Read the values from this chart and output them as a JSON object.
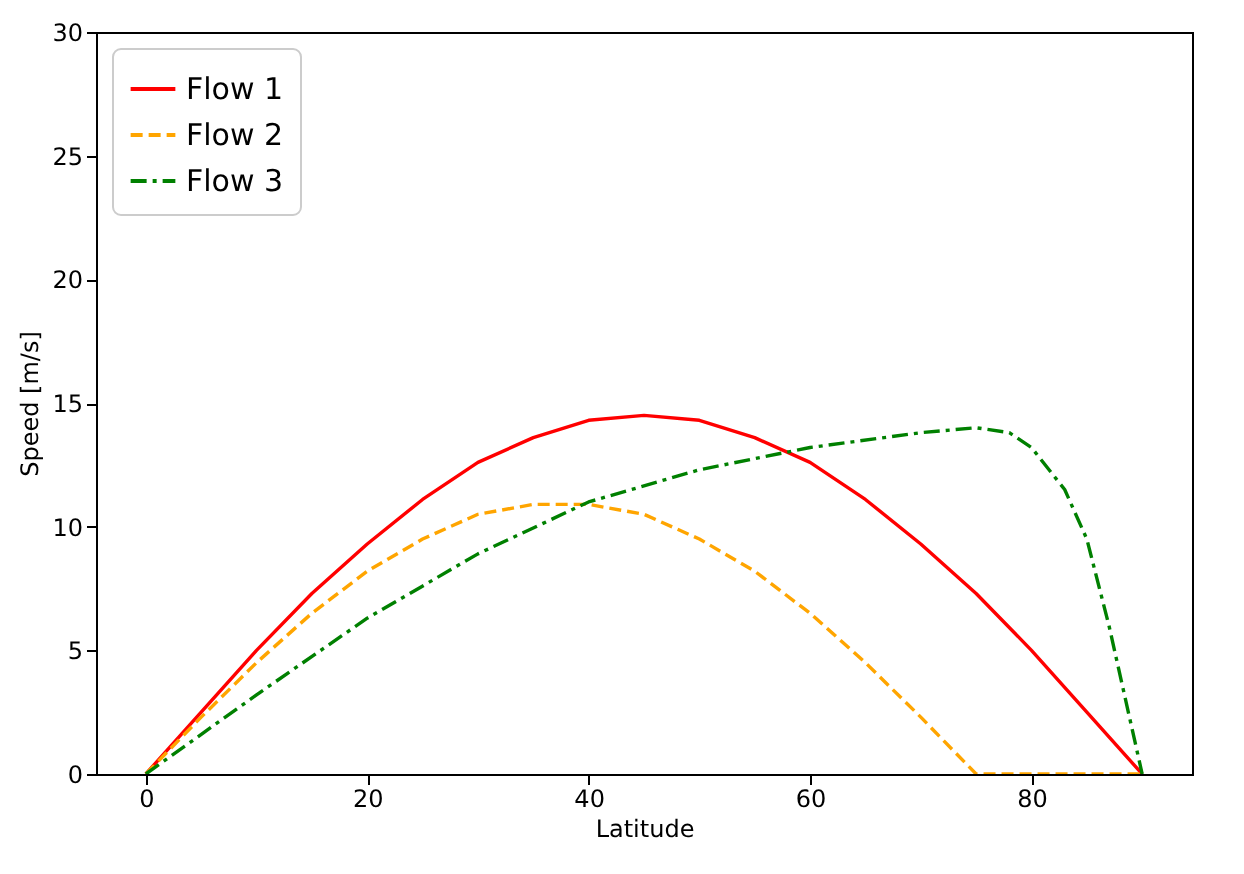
{
  "chart_data": {
    "type": "line",
    "xlabel": "Latitude",
    "ylabel": "Speed [m/s]",
    "xlim": [
      -4.5,
      94.5
    ],
    "xticks": [
      0,
      20,
      40,
      60,
      80
    ],
    "ylim": [
      0,
      30
    ],
    "yticks": [
      0,
      5,
      10,
      15,
      20,
      25,
      30
    ],
    "legend": "top left",
    "grid": false,
    "series": [
      {
        "name": "Flow 1",
        "color": "#ff0000",
        "line_style": "solid",
        "x": [
          0,
          5,
          10,
          15,
          20,
          25,
          30,
          35,
          40,
          45,
          50,
          55,
          60,
          65,
          70,
          75,
          80,
          85,
          90
        ],
        "values": [
          0,
          2.5,
          5.0,
          7.3,
          9.3,
          11.1,
          12.6,
          13.6,
          14.3,
          14.5,
          14.3,
          13.6,
          12.6,
          11.1,
          9.3,
          7.3,
          5.0,
          2.5,
          0
        ]
      },
      {
        "name": "Flow 2",
        "color": "#ffa500",
        "line_style": "dashed",
        "x": [
          0,
          5,
          10,
          15,
          20,
          25,
          30,
          35,
          40,
          45,
          50,
          55,
          60,
          65,
          70,
          75,
          80,
          85,
          90
        ],
        "values": [
          0,
          2.3,
          4.5,
          6.5,
          8.2,
          9.5,
          10.5,
          10.9,
          10.9,
          10.5,
          9.5,
          8.2,
          6.5,
          4.5,
          2.3,
          0,
          0,
          0,
          0
        ]
      },
      {
        "name": "Flow 3",
        "color": "#008000",
        "line_style": "dashdot",
        "x": [
          0,
          10,
          20,
          30,
          40,
          50,
          60,
          70,
          75,
          78,
          80,
          83,
          85,
          87,
          89,
          90
        ],
        "values": [
          0,
          3.2,
          6.3,
          8.9,
          11.0,
          12.3,
          13.2,
          13.8,
          14.0,
          13.8,
          13.2,
          11.5,
          9.5,
          6.0,
          2.0,
          0
        ]
      }
    ]
  }
}
